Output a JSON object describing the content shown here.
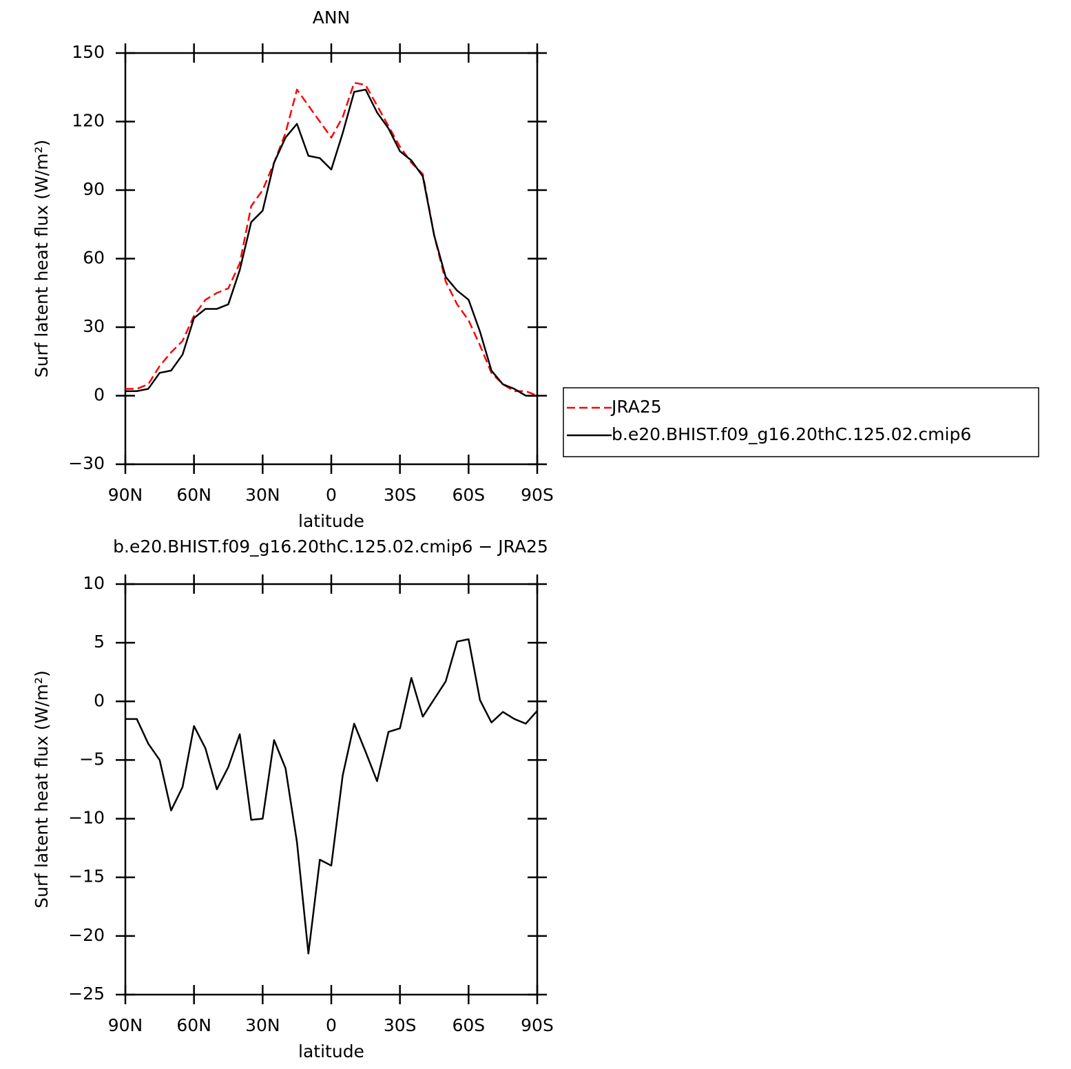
{
  "chart_data": [
    {
      "type": "line",
      "title": "ANN",
      "xlabel": "latitude",
      "ylabel": "Surf latent heat flux (W/m²)",
      "x": [
        90,
        85,
        80,
        75,
        70,
        65,
        60,
        55,
        50,
        45,
        40,
        35,
        30,
        25,
        20,
        15,
        10,
        5,
        0,
        -5,
        -10,
        -15,
        -20,
        -25,
        -30,
        -35,
        -40,
        -45,
        -50,
        -55,
        -60,
        -65,
        -70,
        -75,
        -80,
        -85,
        -90
      ],
      "xlim": [
        90,
        -90
      ],
      "xticks": [
        {
          "value": 90,
          "label": "90N"
        },
        {
          "value": 60,
          "label": "60N"
        },
        {
          "value": 30,
          "label": "30N"
        },
        0,
        {
          "value": -30,
          "label": "30S"
        },
        {
          "value": -60,
          "label": "60S"
        },
        {
          "value": -90,
          "label": "90S"
        }
      ],
      "ylim": [
        -30,
        150
      ],
      "yticks": [
        {
          "value": -30,
          "label": "−30"
        },
        0,
        30,
        60,
        90,
        120,
        150
      ],
      "legend": "right",
      "series": [
        {
          "name": "JRA25",
          "color": "#ff0000",
          "line_style": "dashed",
          "values": [
            3,
            3,
            5,
            13,
            19,
            24,
            35,
            42,
            45,
            47,
            58,
            83,
            90,
            102,
            115,
            134,
            127,
            120,
            113,
            122,
            137,
            136,
            127,
            118,
            109,
            102,
            97,
            70,
            50,
            40,
            33,
            22,
            10,
            5,
            2,
            2,
            0
          ]
        },
        {
          "name": "b.e20.BHIST.f09_g16.20thC.125.02.cmip6",
          "color": "#000000",
          "line_style": "solid",
          "values": [
            2,
            2,
            3,
            10,
            11,
            18,
            34,
            38,
            38,
            40,
            55,
            76,
            81,
            102,
            113,
            119,
            105,
            104,
            99,
            115,
            133,
            134,
            124,
            117,
            107,
            103,
            96,
            70,
            52,
            46,
            42,
            28,
            11,
            5,
            3,
            0,
            0
          ]
        }
      ]
    },
    {
      "type": "line",
      "title": "b.e20.BHIST.f09_g16.20thC.125.02.cmip6 − JRA25",
      "xlabel": "latitude",
      "ylabel": "Surf latent heat flux (W/m²)",
      "x": [
        90,
        85,
        80,
        75,
        70,
        65,
        60,
        55,
        50,
        45,
        40,
        35,
        30,
        25,
        20,
        15,
        10,
        5,
        0,
        -5,
        -10,
        -15,
        -20,
        -25,
        -30,
        -35,
        -40,
        -45,
        -50,
        -55,
        -60,
        -65,
        -70,
        -75,
        -80,
        -85,
        -90
      ],
      "xlim": [
        90,
        -90
      ],
      "xticks": [
        {
          "value": 90,
          "label": "90N"
        },
        {
          "value": 60,
          "label": "60N"
        },
        {
          "value": 30,
          "label": "30N"
        },
        0,
        {
          "value": -30,
          "label": "30S"
        },
        {
          "value": -60,
          "label": "60S"
        },
        {
          "value": -90,
          "label": "90S"
        }
      ],
      "ylim": [
        -25,
        10
      ],
      "yticks": [
        {
          "value": -25,
          "label": "−25"
        },
        {
          "value": -20,
          "label": "−20"
        },
        {
          "value": -15,
          "label": "−15"
        },
        {
          "value": -10,
          "label": "−10"
        },
        {
          "value": -5,
          "label": "−5"
        },
        0,
        5,
        10
      ],
      "color": "#000000",
      "values": [
        -1.5,
        -1.5,
        -3.6,
        -5,
        -9.3,
        -7.3,
        -2.1,
        -4,
        -7.5,
        -5.6,
        -2.8,
        -10.1,
        -10,
        -3.3,
        -5.7,
        -12,
        -21.5,
        -13.5,
        -14,
        -6.3,
        -1.9,
        -4.3,
        -6.8,
        -2.6,
        -2.3,
        2,
        -1.3,
        0.2,
        1.7,
        5.1,
        5.3,
        0.1,
        -1.8,
        -0.9,
        -1.5,
        -1.9,
        -0.8
      ]
    }
  ]
}
